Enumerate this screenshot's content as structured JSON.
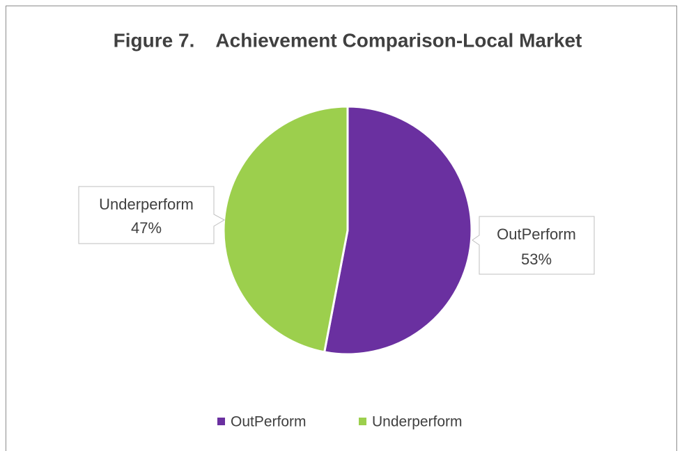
{
  "chart_data": {
    "type": "pie",
    "title": "Figure 7.    Achievement Comparison-Local Market",
    "categories": [
      "OutPerform",
      "Underperform"
    ],
    "values": [
      53,
      47
    ],
    "value_labels": [
      "53%",
      "47%"
    ],
    "colors": [
      "#6a30a0",
      "#9ccf4d"
    ],
    "legend": "bottom"
  }
}
